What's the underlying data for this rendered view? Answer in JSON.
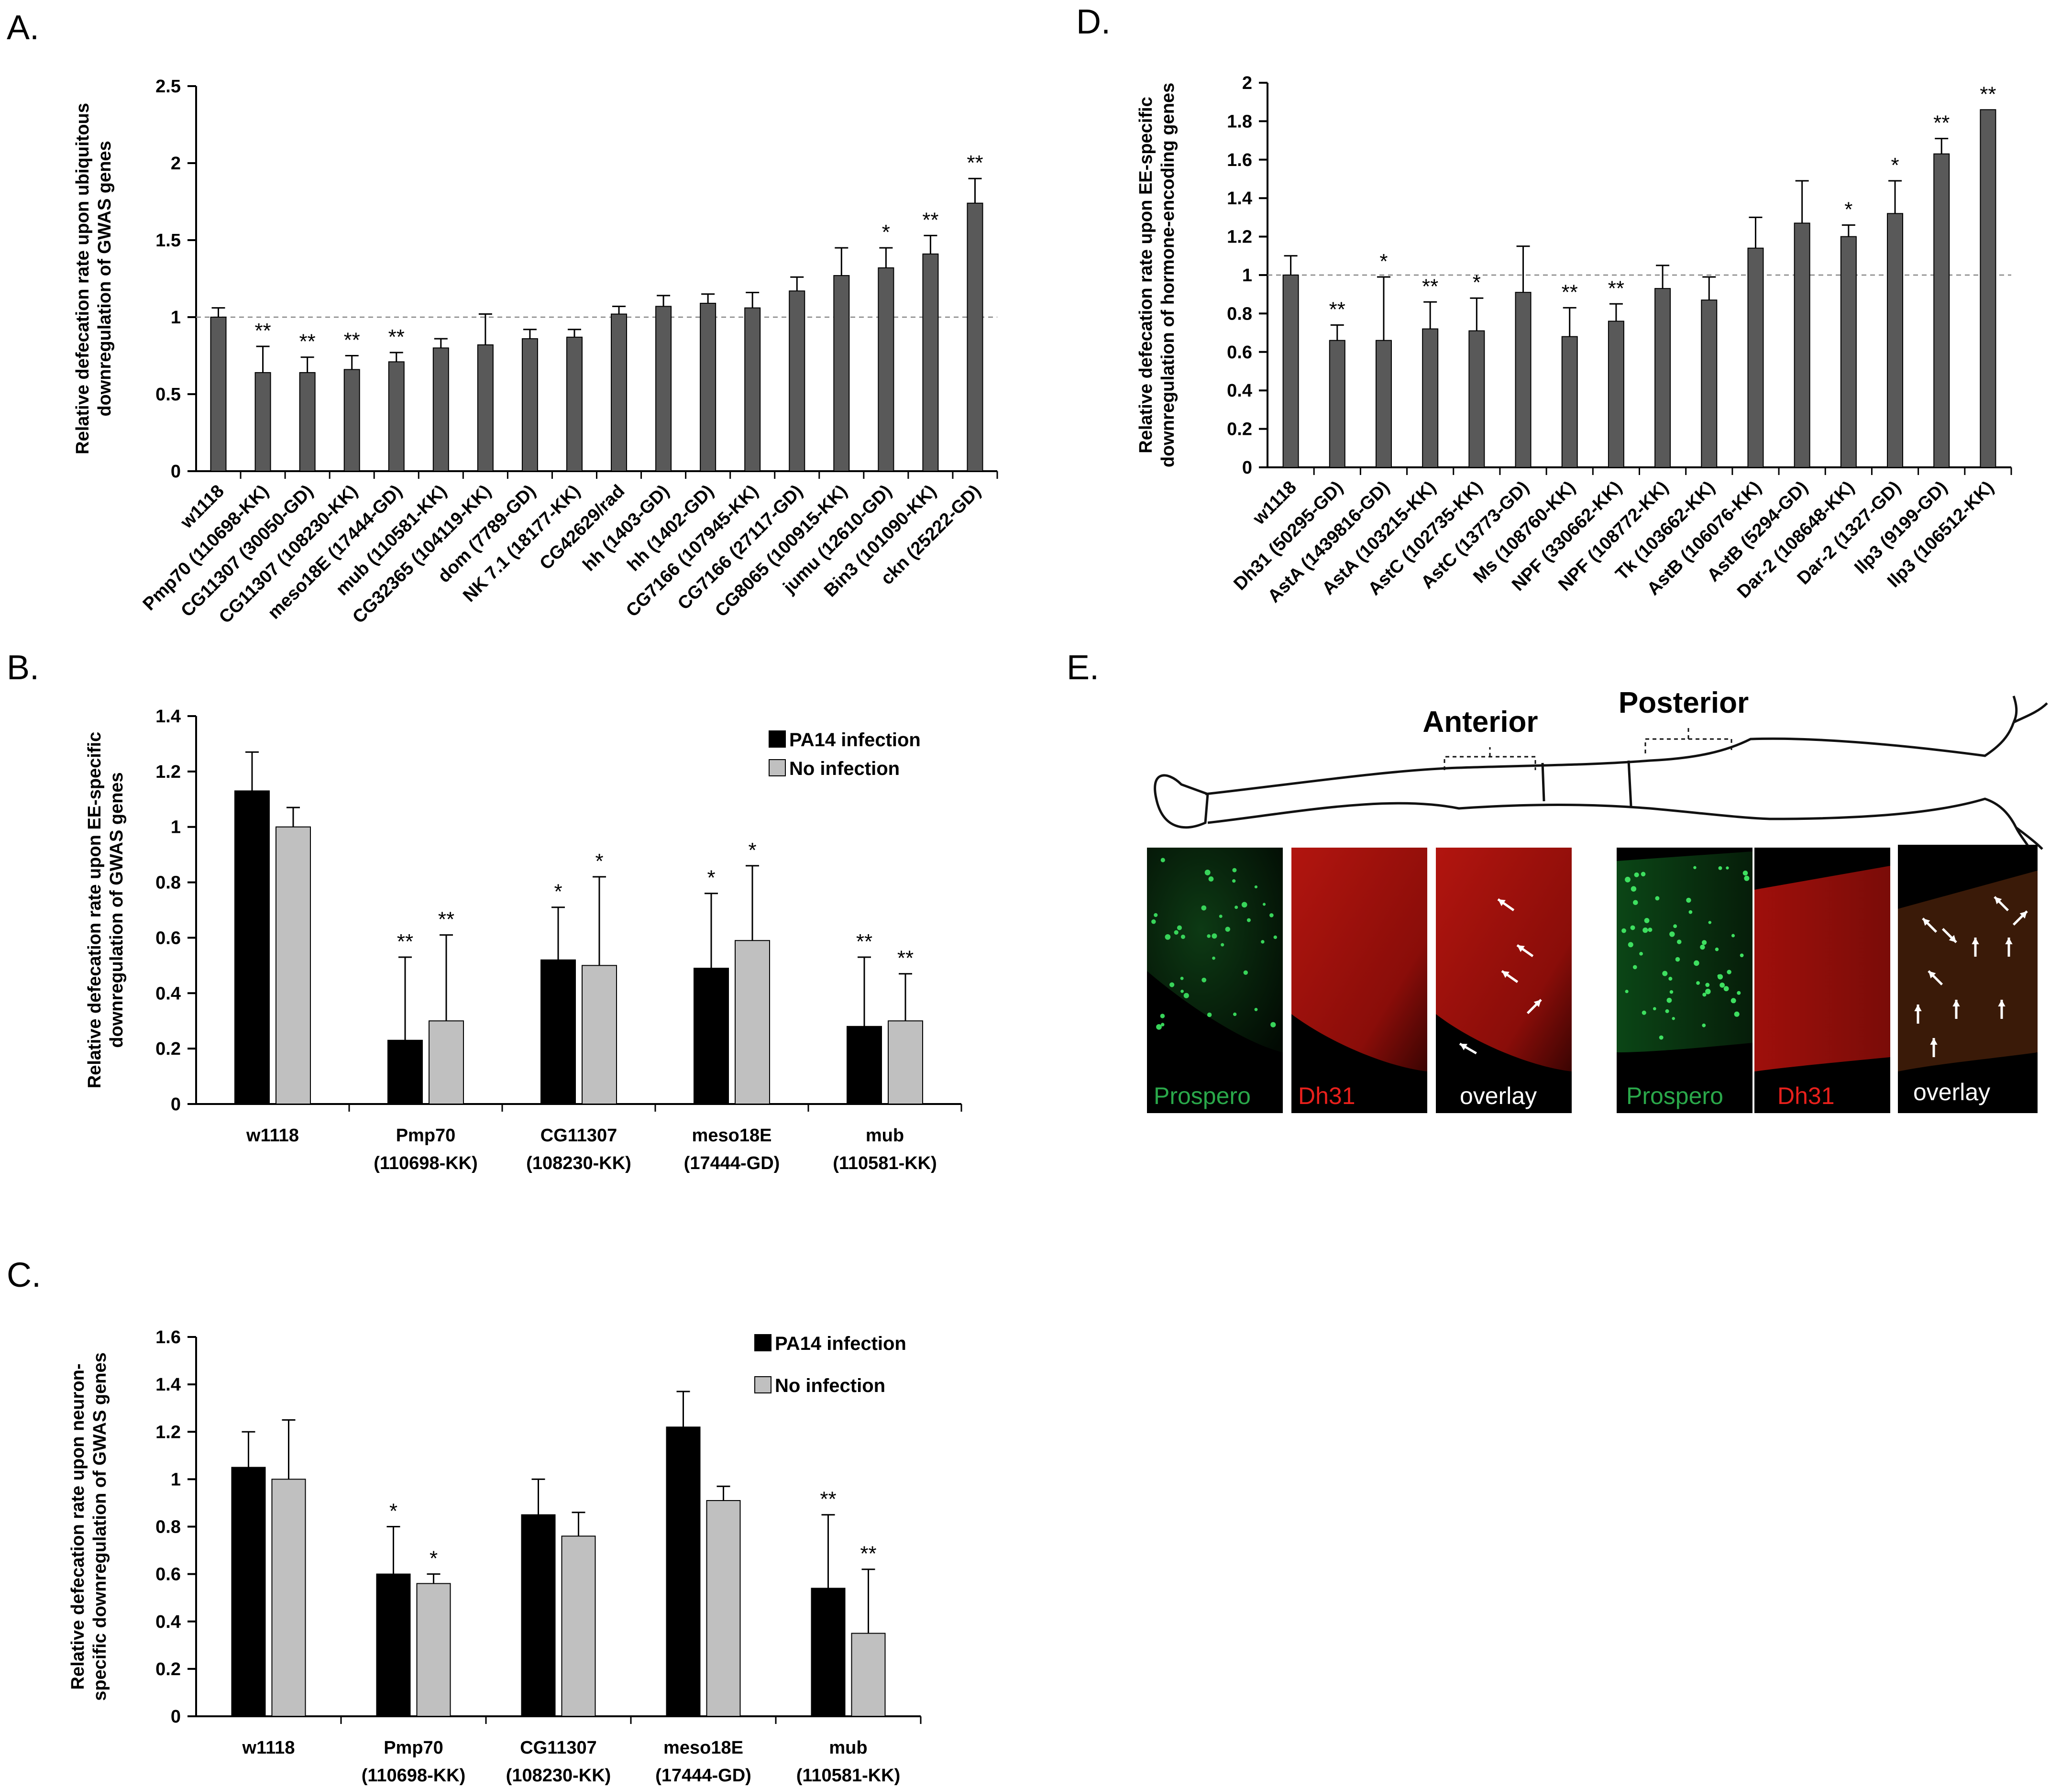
{
  "figure_text": {
    "panel_e_label": "E.",
    "gut_anterior_label": "Anterior",
    "gut_posterior_label": "Posterior",
    "anterior_images": [
      "Prospero",
      "Dh31",
      "overlay"
    ],
    "posterior_images": [
      "Prospero",
      "Dh31",
      "overlay"
    ]
  },
  "colors": {
    "bar_gray": "#595959",
    "bar_black": "#000000",
    "bar_light": "#c0c0c0",
    "prospero_green": "#2aa84a",
    "dh31_red": "#e8201c",
    "overlay_white": "#ffffff"
  },
  "chart_data": [
    {
      "id": "A",
      "panel_label": "A.",
      "type": "bar",
      "ylabel": [
        "Relative defecation rate upon ubiquitous",
        "downregulation of GWAS genes"
      ],
      "ylim": [
        0,
        2.5
      ],
      "yticks": [
        0,
        0.5,
        1,
        1.5,
        2,
        2.5
      ],
      "ytick_labels": [
        "0",
        "0.5",
        "1",
        "1.5",
        "2",
        "2.5"
      ],
      "reference_line": 1,
      "categories": [
        "w1118",
        "Pmp70 (110698-KK)",
        "CG11307 (30050-GD)",
        "CG11307 (108230-KK)",
        "meso18E (17444-GD)",
        "mub (110581-KK)",
        "CG32365 (104119-KK)",
        "dom (7789-GD)",
        "NK 7.1 (18177-KK)",
        "CG42629/rad",
        "hh (1403-GD)",
        "hh (1402-GD)",
        "CG7166 (107945-KK)",
        "CG7166 (27117-GD)",
        "CG8065 (100915-KK)",
        "jumu (12610-GD)",
        "Bin3 (101090-KK)",
        "ckn (25222-GD)"
      ],
      "series": [
        {
          "name": "",
          "values": [
            1.0,
            0.64,
            0.64,
            0.66,
            0.71,
            0.8,
            0.82,
            0.86,
            0.87,
            1.02,
            1.07,
            1.09,
            1.06,
            1.17,
            1.27,
            1.32,
            1.41,
            1.74
          ],
          "errors": [
            0.06,
            0.17,
            0.1,
            0.09,
            0.06,
            0.06,
            0.2,
            0.06,
            0.05,
            0.05,
            0.07,
            0.06,
            0.1,
            0.09,
            0.18,
            0.13,
            0.12,
            0.16
          ],
          "significance": [
            "",
            "**",
            "**",
            "**",
            "**",
            "",
            "",
            "",
            "",
            "",
            "",
            "",
            "",
            "",
            "",
            "*",
            "**",
            "**"
          ]
        }
      ]
    },
    {
      "id": "B",
      "panel_label": "B.",
      "type": "bar",
      "ylabel": [
        "Relative defecation rate upon EE-specific",
        "downregulation of  GWAS genes"
      ],
      "ylim": [
        0,
        1.4
      ],
      "yticks": [
        0,
        0.2,
        0.4,
        0.6,
        0.8,
        1,
        1.2,
        1.4
      ],
      "ytick_labels": [
        "0",
        "0.2",
        "0.4",
        "0.6",
        "0.8",
        "1",
        "1.2",
        "1.4"
      ],
      "categories": [
        [
          "w1118"
        ],
        [
          "Pmp70",
          "(110698-KK)"
        ],
        [
          "CG11307",
          "(108230-KK)"
        ],
        [
          "meso18E",
          "(17444-GD)"
        ],
        [
          "mub",
          "(110581-KK)"
        ]
      ],
      "legend": [
        "PA14 infection",
        "No infection"
      ],
      "series": [
        {
          "name": "PA14 infection",
          "values": [
            1.13,
            0.23,
            0.52,
            0.49,
            0.28
          ],
          "errors": [
            0.14,
            0.3,
            0.19,
            0.27,
            0.25
          ],
          "significance": [
            "",
            "**",
            "*",
            "*",
            "**"
          ]
        },
        {
          "name": "No infection",
          "values": [
            1.0,
            0.3,
            0.5,
            0.59,
            0.3
          ],
          "errors": [
            0.07,
            0.31,
            0.32,
            0.27,
            0.17
          ],
          "significance": [
            "",
            "**",
            "*",
            "*",
            "**"
          ]
        }
      ]
    },
    {
      "id": "C",
      "panel_label": "C.",
      "type": "bar",
      "ylabel": [
        "Relative defecation rate upon neuron-",
        "specific downregulation of GWAS genes"
      ],
      "ylim": [
        0,
        1.6
      ],
      "yticks": [
        0,
        0.2,
        0.4,
        0.6,
        0.8,
        1,
        1.2,
        1.4,
        1.6
      ],
      "ytick_labels": [
        "0",
        "0.2",
        "0.4",
        "0.6",
        "0.8",
        "1",
        "1.2",
        "1.4",
        "1.6"
      ],
      "categories": [
        [
          "w1118"
        ],
        [
          "Pmp70",
          "(110698-KK)"
        ],
        [
          "CG11307",
          "(108230-KK)"
        ],
        [
          "meso18E",
          "(17444-GD)"
        ],
        [
          "mub",
          "(110581-KK)"
        ]
      ],
      "legend": [
        "PA14 infection",
        "No infection"
      ],
      "series": [
        {
          "name": "PA14 infection",
          "values": [
            1.05,
            0.6,
            0.85,
            1.22,
            0.54
          ],
          "errors": [
            0.15,
            0.2,
            0.15,
            0.15,
            0.31
          ],
          "significance": [
            "",
            "*",
            "",
            "",
            "**"
          ]
        },
        {
          "name": "No infection",
          "values": [
            1.0,
            0.56,
            0.76,
            0.91,
            0.35
          ],
          "errors": [
            0.25,
            0.04,
            0.1,
            0.06,
            0.27
          ],
          "significance": [
            "",
            "*",
            "",
            "",
            "**"
          ]
        }
      ]
    },
    {
      "id": "D",
      "panel_label": "D.",
      "type": "bar",
      "ylabel": [
        "Relative defecation rate upon EE-specific",
        "downregulation of  hormone-encoding  genes"
      ],
      "ylim": [
        0,
        2
      ],
      "yticks": [
        0,
        0.2,
        0.4,
        0.6,
        0.8,
        1,
        1.2,
        1.4,
        1.6,
        1.8,
        2
      ],
      "ytick_labels": [
        "0",
        "0.2",
        "0.4",
        "0.6",
        "0.8",
        "1",
        "1.2",
        "1.4",
        "1.6",
        "1.8",
        "2"
      ],
      "reference_line": 1,
      "categories": [
        "w1118",
        "Dh31 (50295-GD)",
        "AstA (1439816-GD)",
        "AstA (103215-KK)",
        "AstC (102735-KK)",
        "AstC (13773-GD)",
        "Ms (108760-KK)",
        "NPF (330662-KK)",
        "NPF (108772-KK)",
        "Tk (103662-KK)",
        "AstB (106076-KK)",
        "AstB (5294-GD)",
        "Dar-2 (108648-KK)",
        "Dar-2 (1327-GD)",
        "Ilp3 (9199-GD)",
        "Ilp3 (106512-KK)"
      ],
      "series": [
        {
          "name": "",
          "values": [
            1.0,
            0.66,
            0.66,
            0.72,
            0.71,
            0.91,
            0.68,
            0.76,
            0.93,
            0.87,
            1.14,
            1.27,
            1.2,
            1.32,
            1.63,
            1.86
          ],
          "errors": [
            0.1,
            0.08,
            0.33,
            0.14,
            0.17,
            0.24,
            0.15,
            0.09,
            0.12,
            0.12,
            0.16,
            0.22,
            0.06,
            0.17,
            0.08,
            0.0
          ],
          "significance": [
            "",
            "**",
            "*",
            "**",
            "*",
            "",
            "**",
            "**",
            "",
            "",
            "",
            "",
            "*",
            "*",
            "**",
            "**"
          ]
        }
      ]
    }
  ]
}
